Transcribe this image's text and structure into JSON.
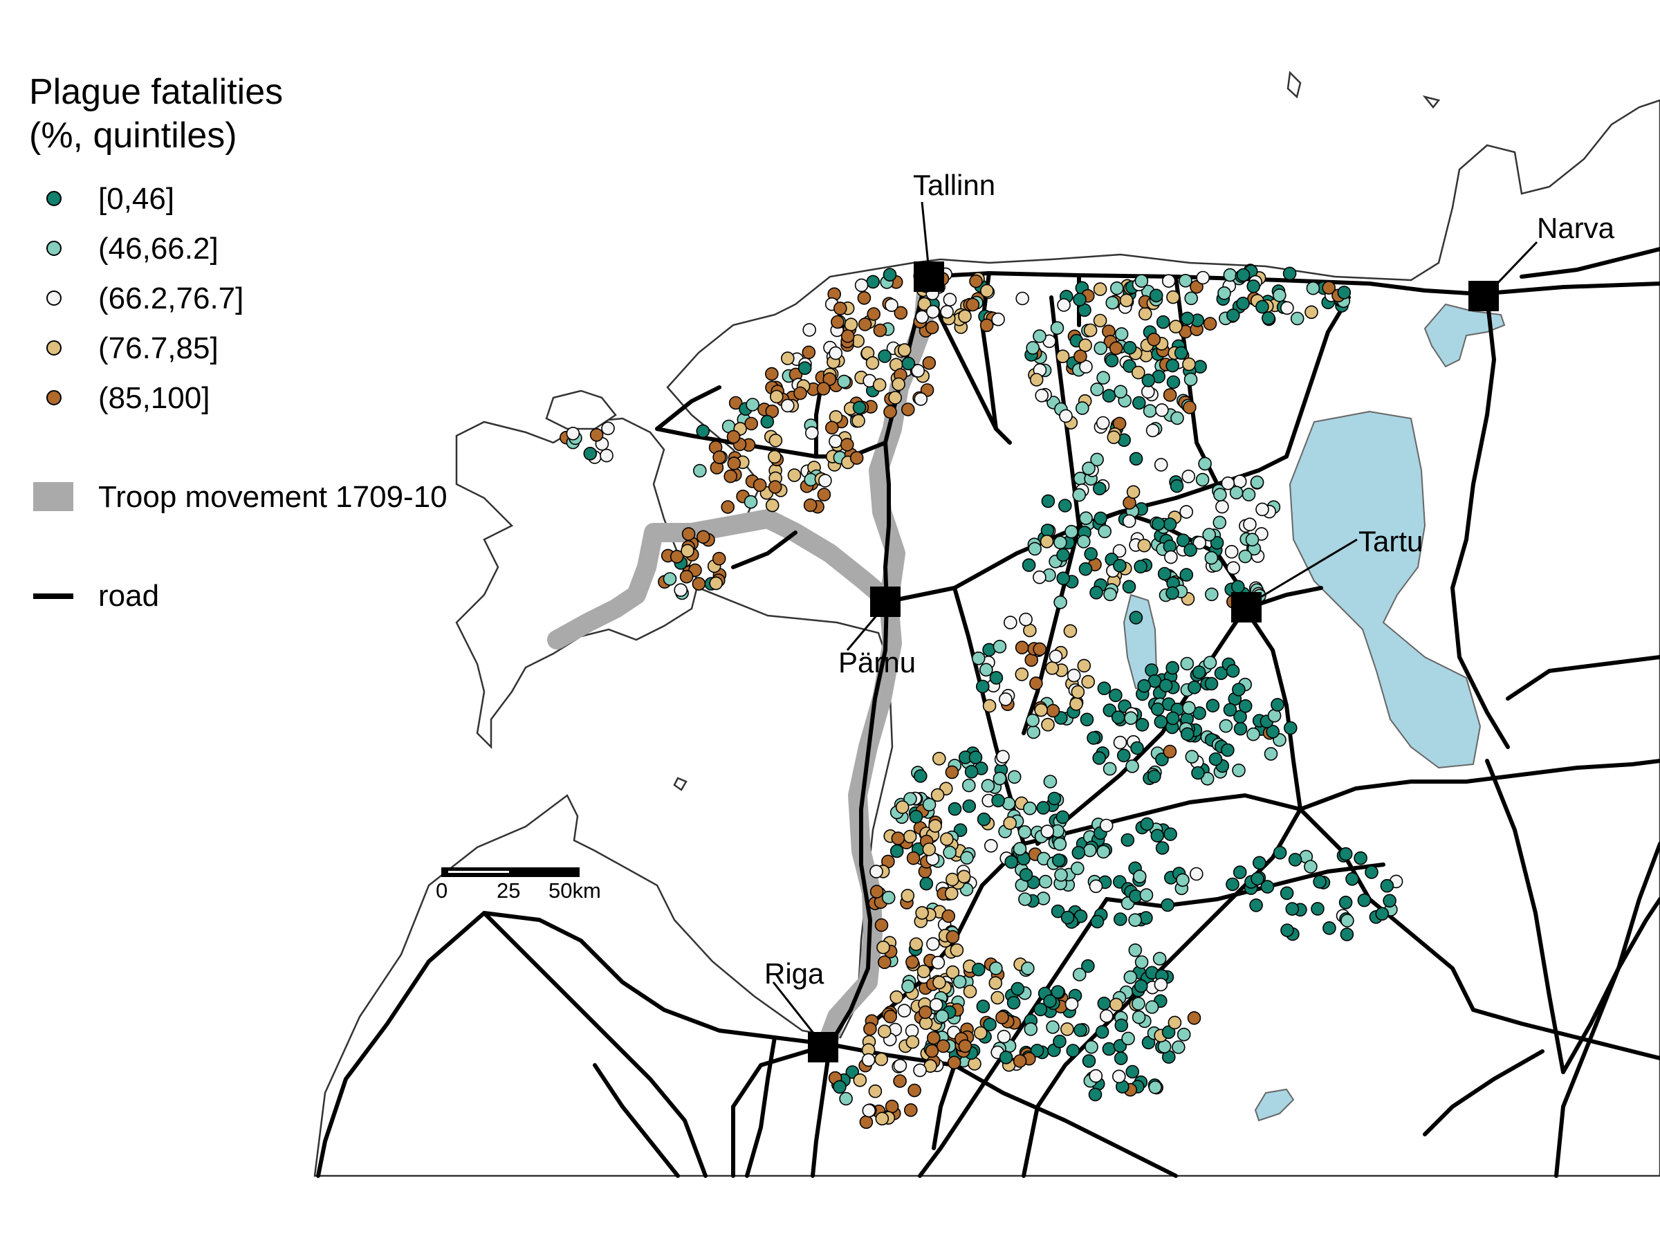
{
  "legend": {
    "title_line1": "Plague fatalities",
    "title_line2": "(%, quintiles)",
    "classes": [
      {
        "label": "[0,46]",
        "color": "#11806c"
      },
      {
        "label": "(46,66.2]",
        "color": "#85cfbe"
      },
      {
        "label": "(66.2,76.7]",
        "color": "#f5f5f5"
      },
      {
        "label": "(76.7,85]",
        "color": "#dfc07f"
      },
      {
        "label": "(85,100]",
        "color": "#b06a2c"
      }
    ],
    "troop_label": "Troop movement 1709-10",
    "troop_color": "#aaaaaa",
    "road_label": "road",
    "road_color": "#000000"
  },
  "cities": [
    {
      "name": "Tallinn"
    },
    {
      "name": "Narva"
    },
    {
      "name": "Tartu"
    },
    {
      "name": "Pärnu"
    },
    {
      "name": "Riga"
    }
  ],
  "scale_bar": {
    "ticks": [
      "0",
      "25",
      "50km"
    ]
  },
  "colors": {
    "water": "#aad5e2",
    "coast": "#333333",
    "border": "#555555"
  }
}
